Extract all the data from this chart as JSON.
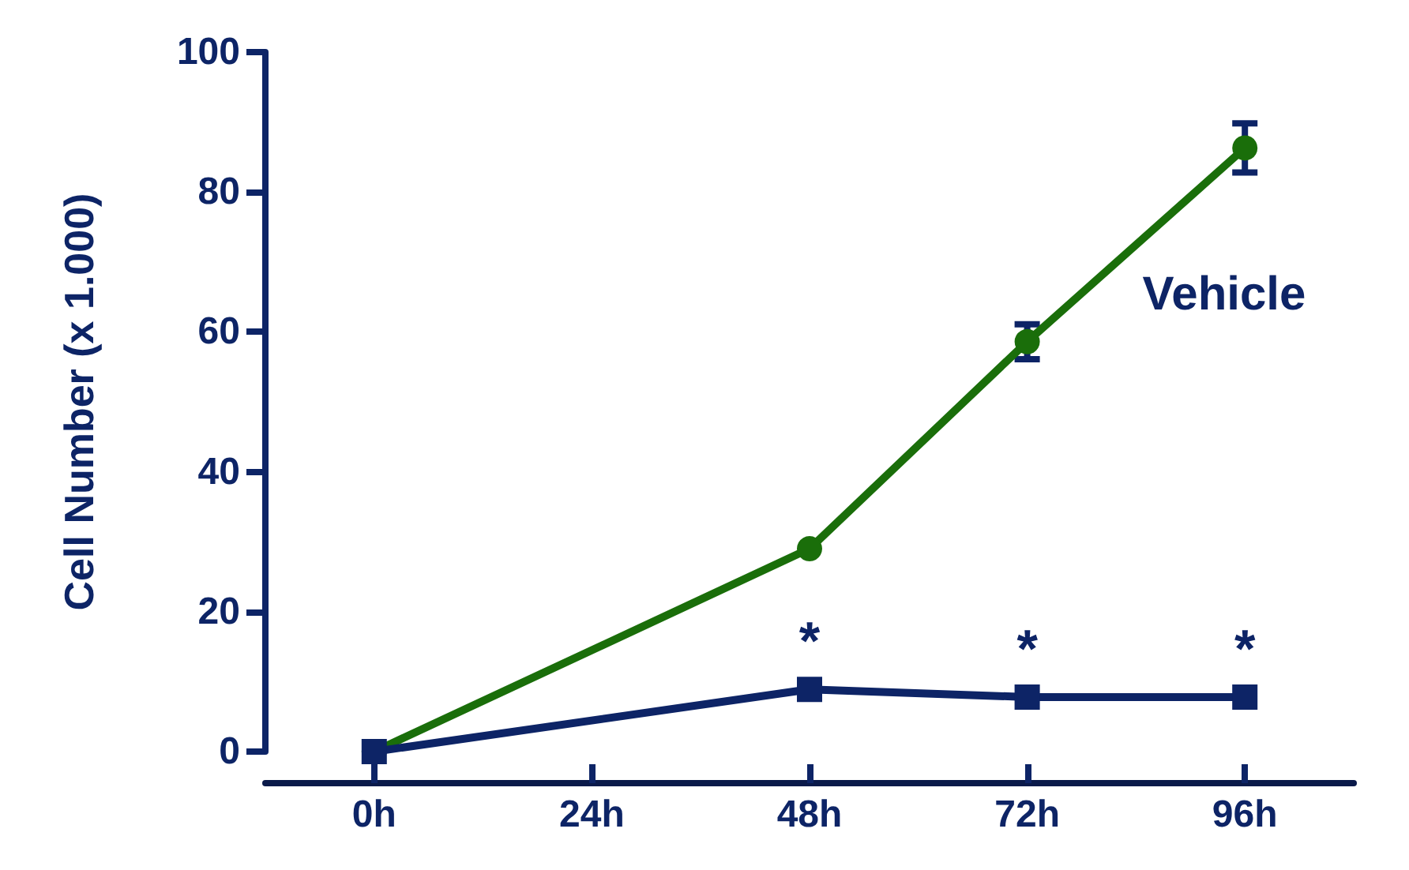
{
  "chart_data": {
    "type": "line",
    "ylabel": "Cell Number (x 1.000)",
    "categories": [
      "0h",
      "24h",
      "48h",
      "72h",
      "96h"
    ],
    "series": [
      {
        "name": "Vehicle",
        "color": "#1a6e0a",
        "marker": "circle",
        "values": [
          0,
          null,
          29,
          58.6,
          86.3
        ],
        "errors": [
          null,
          null,
          null,
          2.5,
          3.5
        ]
      },
      {
        "color": "#0d2466",
        "marker": "square",
        "values": [
          0,
          null,
          8.9,
          7.8,
          7.8
        ]
      }
    ],
    "ylim": [
      0,
      100
    ],
    "yticks": [
      0,
      20,
      40,
      60,
      80,
      100
    ],
    "grid": false,
    "legend": false,
    "line_style": "solid",
    "annotations": [
      "*",
      "*",
      "*"
    ]
  }
}
